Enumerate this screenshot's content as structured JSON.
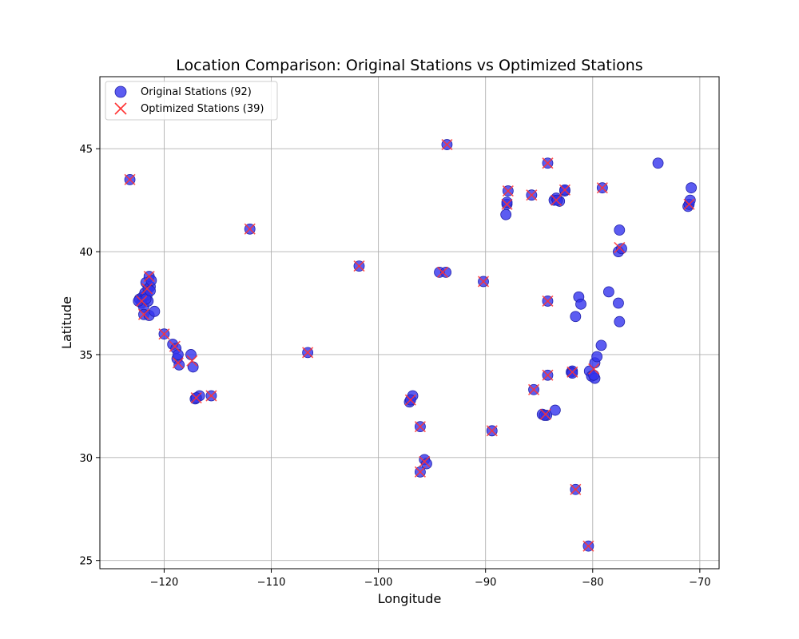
{
  "chart_data": {
    "type": "scatter",
    "title": "Location Comparison: Original Stations vs Optimized Stations",
    "xlabel": "Longitude",
    "ylabel": "Latitude",
    "xlim": [
      -126,
      -68.2
    ],
    "ylim": [
      24.6,
      48.5
    ],
    "xticks": [
      -120,
      -110,
      -100,
      -90,
      -80,
      -70
    ],
    "yticks": [
      25,
      30,
      35,
      40,
      45
    ],
    "grid": true,
    "legend_position": "top-left",
    "colors": {
      "original": "#3333ee",
      "original_edge": "#2222aa",
      "optimized": "#ff3333"
    },
    "series": [
      {
        "name": "Original Stations (92)",
        "marker": "circle",
        "points": [
          [
            -123.2,
            43.5
          ],
          [
            -122.3,
            37.7
          ],
          [
            -122.1,
            37.5
          ],
          [
            -122.0,
            37.8
          ],
          [
            -121.9,
            37.3
          ],
          [
            -121.8,
            38.0
          ],
          [
            -121.7,
            38.5
          ],
          [
            -121.5,
            38.2
          ],
          [
            -121.4,
            38.8
          ],
          [
            -121.5,
            37.6
          ],
          [
            -121.9,
            36.95
          ],
          [
            -121.4,
            36.9
          ],
          [
            -120.9,
            37.1
          ],
          [
            -121.6,
            37.9
          ],
          [
            -121.3,
            38.3
          ],
          [
            -120.0,
            36.0
          ],
          [
            -119.2,
            35.5
          ],
          [
            -118.9,
            35.3
          ],
          [
            -118.8,
            34.8
          ],
          [
            -118.6,
            34.5
          ],
          [
            -117.5,
            35.0
          ],
          [
            -117.3,
            34.4
          ],
          [
            -117.1,
            32.85
          ],
          [
            -116.7,
            33.0
          ],
          [
            -115.6,
            33.0
          ],
          [
            -112.0,
            41.1
          ],
          [
            -106.6,
            35.1
          ],
          [
            -101.8,
            39.3
          ],
          [
            -97.1,
            32.7
          ],
          [
            -96.8,
            33.0
          ],
          [
            -96.1,
            31.5
          ],
          [
            -95.7,
            29.9
          ],
          [
            -95.5,
            29.7
          ],
          [
            -96.1,
            29.3
          ],
          [
            -94.3,
            39.0
          ],
          [
            -93.7,
            39.0
          ],
          [
            -93.6,
            45.2
          ],
          [
            -90.2,
            38.55
          ],
          [
            -89.4,
            31.3
          ],
          [
            -88.1,
            41.8
          ],
          [
            -88.0,
            42.3
          ],
          [
            -88.0,
            42.4
          ],
          [
            -87.9,
            42.95
          ],
          [
            -85.7,
            42.75
          ],
          [
            -85.5,
            33.3
          ],
          [
            -84.7,
            32.1
          ],
          [
            -84.3,
            32.05
          ],
          [
            -84.2,
            34.0
          ],
          [
            -84.2,
            37.6
          ],
          [
            -84.2,
            44.3
          ],
          [
            -83.5,
            32.3
          ],
          [
            -83.6,
            42.5
          ],
          [
            -83.4,
            42.6
          ],
          [
            -83.1,
            42.45
          ],
          [
            -82.6,
            42.95
          ],
          [
            -82.6,
            43.0
          ],
          [
            -82.0,
            34.15
          ],
          [
            -81.9,
            34.2
          ],
          [
            -81.6,
            36.85
          ],
          [
            -81.3,
            37.8
          ],
          [
            -81.1,
            37.45
          ],
          [
            -81.6,
            28.45
          ],
          [
            -80.4,
            25.7
          ],
          [
            -80.3,
            34.2
          ],
          [
            -80.1,
            33.95
          ],
          [
            -79.8,
            33.85
          ],
          [
            -79.8,
            34.6
          ],
          [
            -79.6,
            34.9
          ],
          [
            -79.2,
            35.45
          ],
          [
            -79.1,
            43.1
          ],
          [
            -78.5,
            38.05
          ],
          [
            -77.6,
            37.5
          ],
          [
            -77.5,
            41.05
          ],
          [
            -77.6,
            40.0
          ],
          [
            -77.3,
            40.15
          ],
          [
            -77.5,
            36.6
          ],
          [
            -73.9,
            44.3
          ],
          [
            -71.1,
            42.2
          ],
          [
            -71.0,
            42.3
          ],
          [
            -70.8,
            43.1
          ],
          [
            -70.9,
            42.5
          ],
          [
            -122.4,
            37.6
          ],
          [
            -121.2,
            38.6
          ],
          [
            -118.7,
            35.0
          ],
          [
            -117.0,
            32.9
          ],
          [
            -97.0,
            32.8
          ],
          [
            -83.3,
            42.5
          ],
          [
            -81.9,
            34.1
          ],
          [
            -84.5,
            32.05
          ],
          [
            -79.9,
            34.0
          ],
          [
            -121.7,
            37.7
          ],
          [
            -121.3,
            38.1
          ]
        ]
      },
      {
        "name": "Optimized Stations (39)",
        "marker": "x",
        "points": [
          [
            -123.2,
            43.5
          ],
          [
            -122.1,
            37.6
          ],
          [
            -121.6,
            38.2
          ],
          [
            -121.4,
            38.8
          ],
          [
            -121.9,
            36.95
          ],
          [
            -120.0,
            36.0
          ],
          [
            -119.0,
            35.4
          ],
          [
            -118.7,
            34.6
          ],
          [
            -117.4,
            34.7
          ],
          [
            -117.0,
            32.9
          ],
          [
            -115.6,
            33.0
          ],
          [
            -112.0,
            41.1
          ],
          [
            -106.6,
            35.1
          ],
          [
            -101.8,
            39.3
          ],
          [
            -97.0,
            32.8
          ],
          [
            -96.1,
            31.5
          ],
          [
            -95.7,
            29.8
          ],
          [
            -96.1,
            29.3
          ],
          [
            -94.0,
            39.0
          ],
          [
            -93.6,
            45.2
          ],
          [
            -90.2,
            38.55
          ],
          [
            -89.4,
            31.3
          ],
          [
            -88.0,
            42.3
          ],
          [
            -87.9,
            42.95
          ],
          [
            -85.7,
            42.75
          ],
          [
            -85.5,
            33.3
          ],
          [
            -84.4,
            32.1
          ],
          [
            -84.2,
            34.0
          ],
          [
            -84.2,
            37.6
          ],
          [
            -84.2,
            44.3
          ],
          [
            -83.4,
            42.5
          ],
          [
            -82.6,
            43.0
          ],
          [
            -81.9,
            34.15
          ],
          [
            -81.6,
            28.45
          ],
          [
            -80.4,
            25.7
          ],
          [
            -79.9,
            34.3
          ],
          [
            -79.1,
            43.1
          ],
          [
            -77.5,
            40.2
          ],
          [
            -71.0,
            42.3
          ]
        ]
      }
    ]
  }
}
